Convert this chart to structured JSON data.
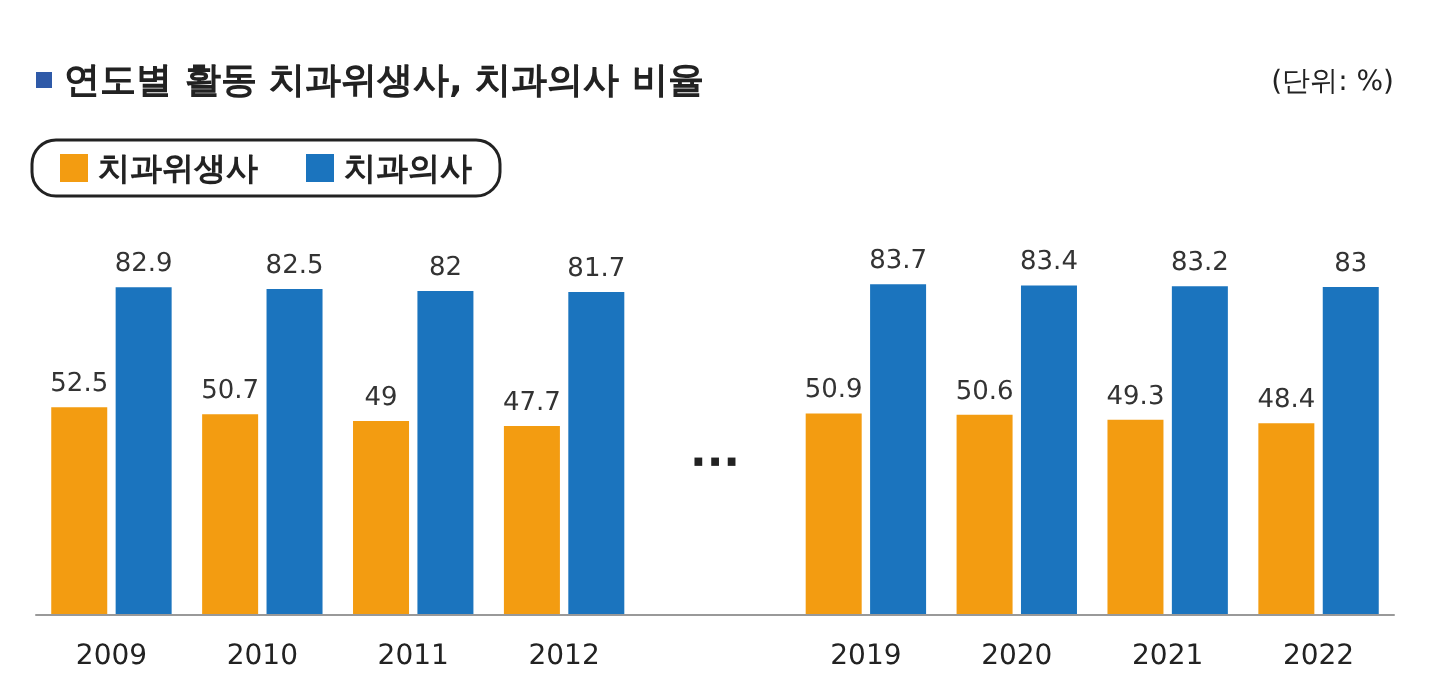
{
  "chart_data": {
    "type": "bar",
    "title": "연도별 활동 치과위생사, 치과의사 비율",
    "annotations": [
      "(단위: %)",
      "···"
    ],
    "categories": [
      "2009",
      "2010",
      "2011",
      "2012",
      null,
      "2019",
      "2020",
      "2021",
      "2022"
    ],
    "series": [
      {
        "name": "치과위생사",
        "color": "#f39c11",
        "values": [
          52.5,
          50.7,
          49,
          47.7,
          null,
          50.9,
          50.6,
          49.3,
          48.4
        ]
      },
      {
        "name": "치과의사",
        "color": "#1b74be",
        "values": [
          82.9,
          82.5,
          82,
          81.7,
          null,
          83.7,
          83.4,
          83.2,
          83
        ]
      }
    ],
    "data_labels": true,
    "legend": "top left",
    "grid": false
  }
}
